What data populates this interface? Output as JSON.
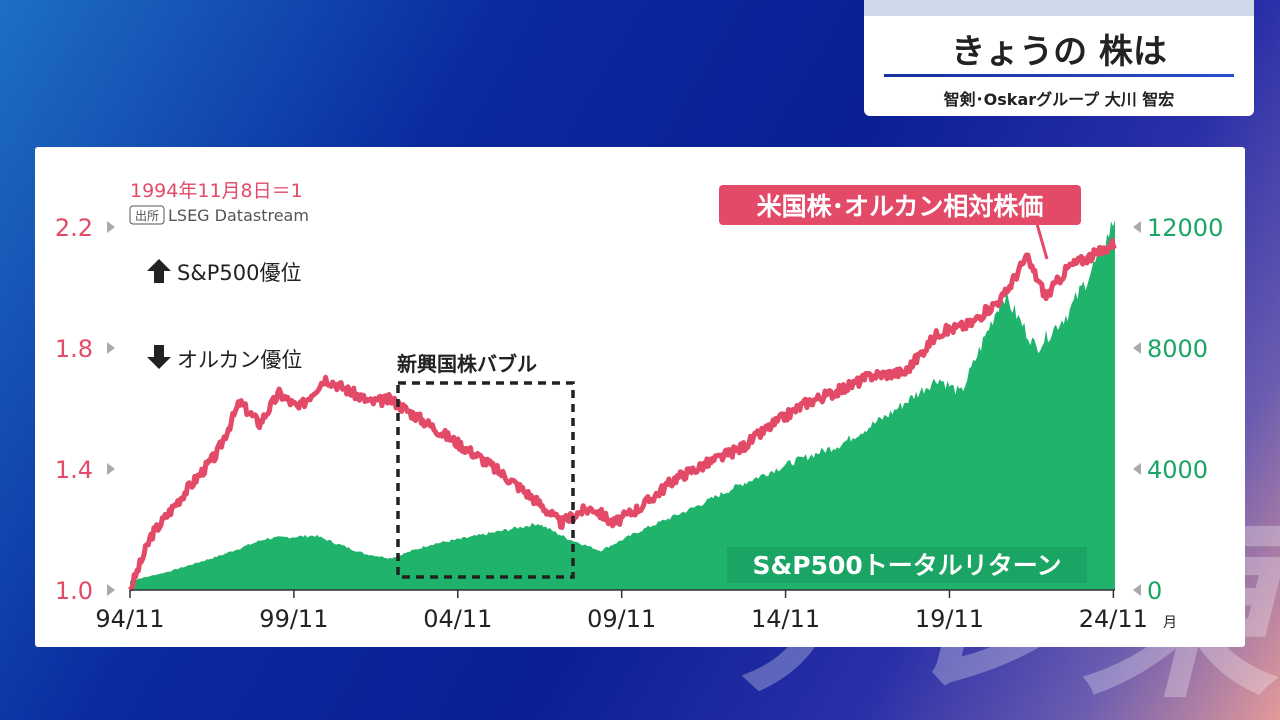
{
  "header": {
    "title": "きょうの 株は",
    "subtitle": "智剣･Oskarグループ 大川 智宏"
  },
  "watermark": {
    "text": "テレ東"
  },
  "chart_data": {
    "type": "line",
    "note": "1994年11月8日＝1",
    "source_badge": "出所",
    "source": "LSEG Datastream",
    "up_label": "S&P500優位",
    "down_label": "オルカン優位",
    "box_label": "新興国株バブル",
    "x_ticks": [
      "94/11",
      "99/11",
      "04/11",
      "09/11",
      "14/11",
      "19/11",
      "24/11"
    ],
    "x_unit": "月",
    "y_left": {
      "ticks": [
        "1.0",
        "1.4",
        "1.8",
        "2.2"
      ],
      "ylim": [
        1.0,
        2.2
      ]
    },
    "y_right": {
      "ticks": [
        "0",
        "4000",
        "8000",
        "12000"
      ],
      "ylim": [
        0,
        12000
      ]
    },
    "series": [
      {
        "name": "米国株･オルカン相対株価",
        "axis": "left",
        "color": "#e24a68",
        "x": [
          1994.85,
          1995.5,
          1996.5,
          1997.5,
          1998.2,
          1998.8,
          1999.4,
          2000.0,
          2000.8,
          2001.5,
          2002.2,
          2002.8,
          2003.5,
          2004.5,
          2005.5,
          2006.5,
          2007.3,
          2008.0,
          2008.6,
          2009.0,
          2009.6,
          2010.5,
          2011.5,
          2012.5,
          2013.5,
          2014.5,
          2015.5,
          2016.5,
          2017.5,
          2018.5,
          2019.5,
          2020.5,
          2021.5,
          2022.2,
          2022.8,
          2023.5,
          2024.5,
          2024.9
        ],
        "values": [
          1.0,
          1.18,
          1.32,
          1.45,
          1.62,
          1.55,
          1.65,
          1.6,
          1.7,
          1.66,
          1.62,
          1.63,
          1.58,
          1.51,
          1.44,
          1.36,
          1.29,
          1.22,
          1.26,
          1.27,
          1.22,
          1.28,
          1.37,
          1.42,
          1.47,
          1.55,
          1.62,
          1.66,
          1.71,
          1.72,
          1.85,
          1.88,
          1.97,
          2.1,
          1.97,
          2.07,
          2.12,
          2.15
        ]
      },
      {
        "name": "S&P500トータルリターン",
        "axis": "right",
        "color": "#1fb36b",
        "x": [
          1994.85,
          1996.0,
          1997.5,
          1999.0,
          2000.5,
          2002.0,
          2002.8,
          2004.0,
          2005.5,
          2007.3,
          2008.2,
          2009.2,
          2010.5,
          2012.0,
          2013.5,
          2015.0,
          2016.5,
          2018.0,
          2019.5,
          2020.2,
          2021.5,
          2022.5,
          2023.5,
          2024.5,
          2024.9
        ],
        "values": [
          300,
          600,
          1100,
          1700,
          1800,
          1200,
          1050,
          1500,
          1800,
          2200,
          1700,
          1300,
          2000,
          2700,
          3500,
          4200,
          4800,
          5800,
          7000,
          6500,
          9800,
          8000,
          9200,
          11200,
          12300
        ]
      }
    ]
  }
}
